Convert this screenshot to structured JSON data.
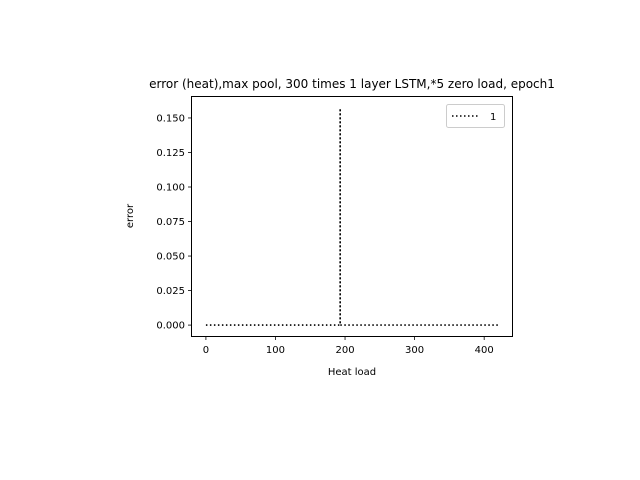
{
  "chart_data": {
    "type": "line",
    "title": "error (heat),max pool, 300 times 1 layer LSTM,*5 zero load, epoch1",
    "xlabel": "Heat load",
    "ylabel": "error",
    "xlim": [
      -20,
      440
    ],
    "ylim": [
      -0.0079,
      0.1659
    ],
    "xticks": [
      0,
      100,
      200,
      300,
      400
    ],
    "xtick_labels": [
      "0",
      "100",
      "200",
      "300",
      "400"
    ],
    "yticks": [
      0.0,
      0.025,
      0.05,
      0.075,
      0.1,
      0.125,
      0.15
    ],
    "ytick_labels": [
      "0.000",
      "0.025",
      "0.050",
      "0.075",
      "0.100",
      "0.125",
      "0.150"
    ],
    "grid": false,
    "legend_position": "top-right",
    "series": [
      {
        "name": "1",
        "line_style": "dotted",
        "color": "#000000",
        "x": [
          0,
          193,
          193,
          193,
          420
        ],
        "y": [
          0.0,
          0.0,
          0.157,
          0.0,
          0.0
        ]
      }
    ]
  }
}
